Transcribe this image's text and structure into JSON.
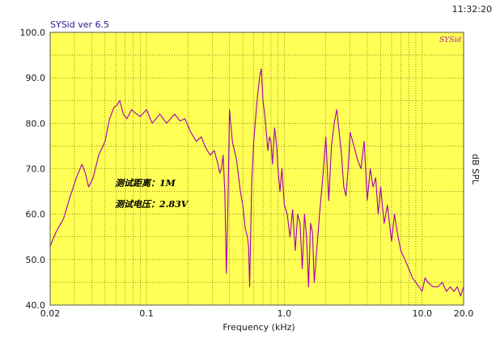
{
  "app_title": "SYSid ver 6.5",
  "clock": "11:32:20",
  "logo": "SYSid",
  "chart_data": {
    "type": "line",
    "xscale": "log",
    "xlabel": "Frequency (kHz)",
    "ylabel": "dB SPL",
    "xlim": [
      0.02,
      20.0
    ],
    "ylim": [
      40.0,
      100.0
    ],
    "xticks": [
      {
        "v": 0.02,
        "label": "0.02"
      },
      {
        "v": 0.1,
        "label": "0.1"
      },
      {
        "v": 1.0,
        "label": "1.0"
      },
      {
        "v": 10.0,
        "label": "10.0"
      },
      {
        "v": 20.0,
        "label": "20.0"
      }
    ],
    "yticks": [
      {
        "v": 100,
        "label": "100.0"
      },
      {
        "v": 90,
        "label": "90.0"
      },
      {
        "v": 80,
        "label": "80.0"
      },
      {
        "v": 70,
        "label": "70.0"
      },
      {
        "v": 60,
        "label": "60.0"
      },
      {
        "v": 50,
        "label": "50.0"
      },
      {
        "v": 40,
        "label": "40.0"
      }
    ],
    "grid": true,
    "colors": {
      "plot_bg": "#ffff55",
      "grid": "#4a4a00",
      "line": "#a000b4",
      "frame": "#555555"
    },
    "annotations": [
      "测试距离：1M",
      "测试电压：2.83V"
    ],
    "series": [
      {
        "x": [
          0.02,
          0.022,
          0.025,
          0.028,
          0.031,
          0.034,
          0.036,
          0.038,
          0.041,
          0.045,
          0.05,
          0.054,
          0.058,
          0.061,
          0.064,
          0.068,
          0.072,
          0.078,
          0.085,
          0.09,
          0.1,
          0.11,
          0.125,
          0.14,
          0.16,
          0.175,
          0.19,
          0.21,
          0.23,
          0.25,
          0.27,
          0.29,
          0.31,
          0.33,
          0.34,
          0.35,
          0.36,
          0.37,
          0.38,
          0.39,
          0.4,
          0.42,
          0.45,
          0.48,
          0.5,
          0.52,
          0.54,
          0.55,
          0.56,
          0.58,
          0.6,
          0.63,
          0.66,
          0.68,
          0.7,
          0.72,
          0.74,
          0.76,
          0.78,
          0.8,
          0.82,
          0.85,
          0.88,
          0.9,
          0.93,
          0.96,
          1.0,
          1.05,
          1.1,
          1.15,
          1.2,
          1.25,
          1.3,
          1.35,
          1.4,
          1.45,
          1.5,
          1.55,
          1.6,
          1.65,
          1.7,
          1.8,
          1.9,
          2.0,
          2.05,
          2.1,
          2.2,
          2.3,
          2.4,
          2.5,
          2.6,
          2.7,
          2.8,
          2.9,
          3.0,
          3.2,
          3.4,
          3.6,
          3.8,
          4.0,
          4.2,
          4.4,
          4.6,
          4.8,
          5.0,
          5.3,
          5.6,
          6.0,
          6.3,
          6.6,
          7.0,
          7.5,
          8.0,
          8.5,
          9.0,
          9.5,
          10.0,
          10.5,
          11.0,
          12.0,
          13.0,
          14.0,
          15.0,
          16.0,
          17.0,
          18.0,
          19.0,
          20.0
        ],
        "y": [
          53,
          56,
          59,
          64,
          68,
          71,
          69,
          66,
          68,
          73,
          76,
          81,
          83.5,
          84,
          85,
          82,
          81,
          83,
          82,
          81.5,
          83,
          80,
          82,
          80,
          82,
          80.5,
          81,
          78,
          76,
          77,
          74.5,
          73,
          74,
          71,
          69,
          70,
          73,
          65,
          47,
          62,
          83,
          76,
          72,
          65,
          62,
          57,
          55,
          53,
          44,
          67,
          76,
          84,
          90,
          92,
          85,
          82,
          78,
          74,
          77,
          76,
          71,
          79,
          75,
          70,
          65,
          70,
          62,
          60,
          55,
          61,
          52,
          60,
          58,
          48,
          60,
          55,
          44,
          58,
          56,
          45,
          50,
          60,
          68,
          77,
          70,
          63,
          75,
          80,
          83,
          78,
          73,
          66,
          64,
          70,
          78,
          75,
          72,
          70,
          76,
          63,
          70,
          66,
          68,
          60,
          66,
          58,
          62,
          54,
          60,
          56,
          52,
          50,
          48,
          46,
          45,
          44,
          43,
          46,
          45,
          44,
          44,
          45,
          43,
          44,
          43,
          44,
          42,
          44
        ]
      }
    ]
  }
}
